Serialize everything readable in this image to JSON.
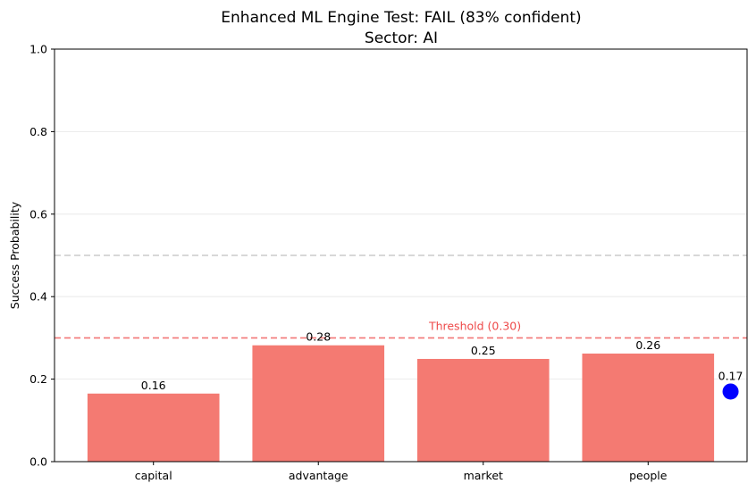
{
  "chart_data": {
    "type": "bar",
    "title": "Enhanced ML Engine Test: FAIL (83% confident)",
    "subtitle": "Sector: AI",
    "ylabel": "Success Probability",
    "xlabel": "",
    "ylim": [
      0,
      1
    ],
    "yticks": [
      0.0,
      0.2,
      0.4,
      0.6,
      0.8,
      1.0
    ],
    "ytick_labels": [
      "0.0",
      "0.2",
      "0.4",
      "0.6",
      "0.8",
      "1.0"
    ],
    "grid": true,
    "categories": [
      "capital",
      "advantage",
      "market",
      "people"
    ],
    "values": [
      0.165,
      0.282,
      0.249,
      0.262
    ],
    "value_labels": [
      "0.16",
      "0.28",
      "0.25",
      "0.26"
    ],
    "bar_color": "#f47a72",
    "threshold": {
      "value": 0.3,
      "label": "Threshold (0.30)",
      "color": "#ee4a4a"
    },
    "reference_line": {
      "value": 0.5,
      "color": "#cccccc"
    },
    "overall_point": {
      "value": 0.17,
      "label": "0.17",
      "color": "#0000ff"
    }
  }
}
